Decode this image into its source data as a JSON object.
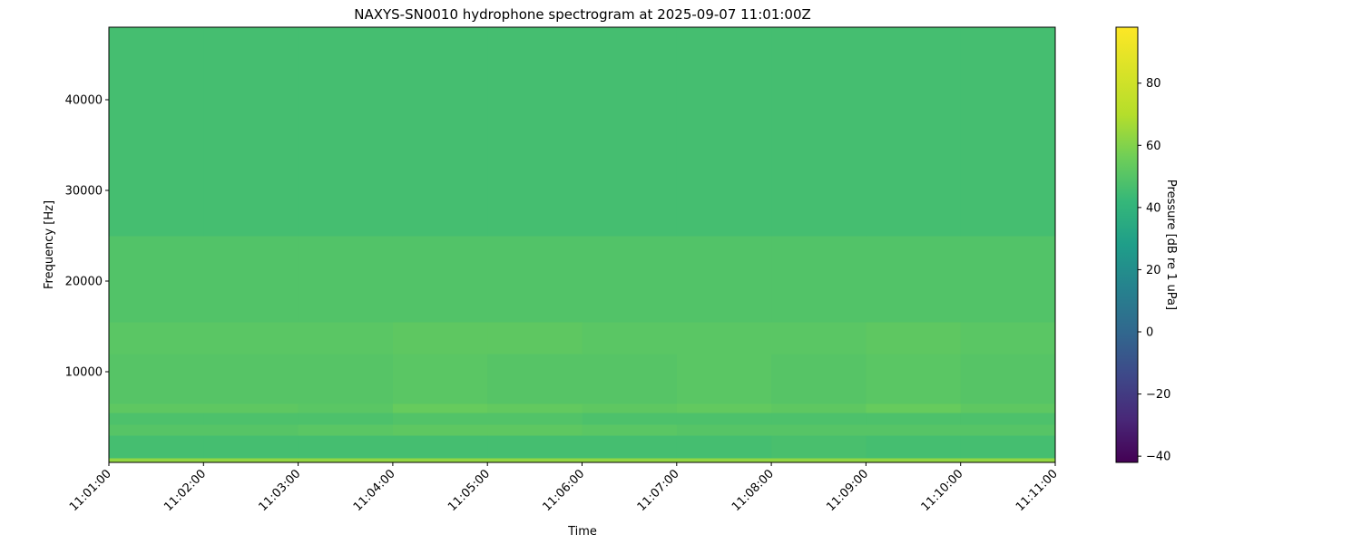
{
  "chart_data": {
    "type": "heatmap",
    "title": "NAXYS-SN0010 hydrophone spectrogram at 2025-09-07 11:01:00Z",
    "xlabel": "Time",
    "ylabel": "Frequency [Hz]",
    "colorbar_label": "Pressure [dB re 1 uPa]",
    "colormap": "viridis",
    "color_range": [
      -42,
      98
    ],
    "colorbar_ticks": [
      -40,
      -20,
      0,
      20,
      40,
      60,
      80
    ],
    "ylim": [
      0,
      48000
    ],
    "yticks": [
      10000,
      20000,
      30000,
      40000
    ],
    "xticks": [
      "11:01:00",
      "11:02:00",
      "11:03:00",
      "11:04:00",
      "11:05:00",
      "11:06:00",
      "11:07:00",
      "11:08:00",
      "11:09:00",
      "11:10:00",
      "11:11:00"
    ],
    "time_bins": [
      "11:01",
      "11:02",
      "11:03",
      "11:04",
      "11:05",
      "11:06",
      "11:07",
      "11:08",
      "11:09",
      "11:10"
    ],
    "frequency_bands": [
      {
        "range": [
          0,
          500
        ],
        "values": [
          63,
          63,
          63,
          63,
          63,
          63,
          63,
          63,
          63,
          63
        ]
      },
      {
        "range": [
          500,
          3000
        ],
        "values": [
          46,
          46,
          46,
          46,
          46,
          46,
          46,
          47,
          46,
          46
        ]
      },
      {
        "range": [
          3000,
          4200
        ],
        "values": [
          50,
          50,
          51,
          52,
          52,
          51,
          50,
          50,
          50,
          50
        ]
      },
      {
        "range": [
          4200,
          5500
        ],
        "values": [
          48,
          48,
          48,
          49,
          49,
          48,
          48,
          48,
          48,
          48
        ]
      },
      {
        "range": [
          5500,
          6500
        ],
        "values": [
          52,
          52,
          51,
          54,
          53,
          52,
          53,
          52,
          54,
          52
        ]
      },
      {
        "range": [
          6500,
          12000
        ],
        "values": [
          50,
          50,
          50,
          51,
          50,
          50,
          51,
          50,
          51,
          50
        ]
      },
      {
        "range": [
          12000,
          15500
        ],
        "values": [
          51,
          51,
          51,
          52,
          52,
          51,
          51,
          51,
          52,
          51
        ]
      },
      {
        "range": [
          15500,
          25000
        ],
        "values": [
          49,
          49,
          49,
          49,
          49,
          49,
          49,
          49,
          49,
          49
        ]
      },
      {
        "range": [
          25000,
          48000
        ],
        "values": [
          46,
          46,
          46,
          46,
          46,
          46,
          46,
          46,
          46,
          46
        ]
      }
    ]
  }
}
